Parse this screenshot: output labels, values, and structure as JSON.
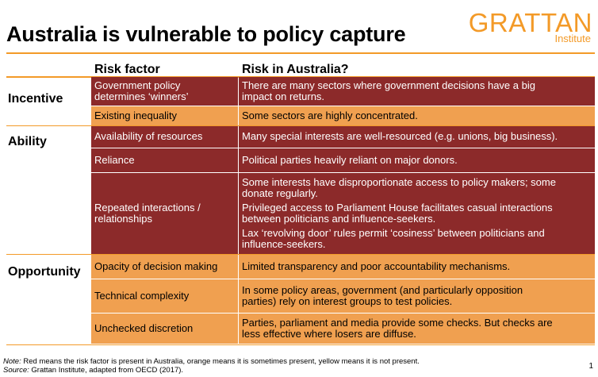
{
  "title": "Australia is vulnerable to policy capture",
  "logo": {
    "word": "GRATTAN",
    "sub": "Institute"
  },
  "headers": {
    "risk_factor": "Risk factor",
    "risk_in_australia": "Risk in Australia?"
  },
  "groups": {
    "incentive": "Incentive",
    "ability": "Ability",
    "opportunity": "Opportunity"
  },
  "rows": [
    {
      "factor": [
        "Government policy",
        "determines ‘winners’"
      ],
      "risk": [
        "There are many sectors where government decisions have a big",
        "impact on returns."
      ],
      "level": "red"
    },
    {
      "factor": [
        "Existing inequality"
      ],
      "risk": [
        "Some sectors are highly concentrated."
      ],
      "level": "orange"
    },
    {
      "factor": [
        "Availability of resources"
      ],
      "risk": [
        "Many special interests are well-resourced (e.g. unions, big business)."
      ],
      "level": "red"
    },
    {
      "factor": [
        "Reliance"
      ],
      "risk": [
        "Political parties heavily reliant on major donors."
      ],
      "level": "red"
    },
    {
      "factor": [
        "Repeated interactions /",
        "relationships"
      ],
      "risk": [
        "Some interests have disproportionate access to policy makers; some",
        "donate regularly.",
        "Privileged access to Parliament House facilitates casual interactions",
        "between politicians and influence-seekers.",
        "Lax ‘revolving door’ rules permit ‘cosiness’ between politicians and",
        "influence-seekers."
      ],
      "level": "red"
    },
    {
      "factor": [
        "Opacity of decision making"
      ],
      "risk": [
        "Limited transparency and poor accountability mechanisms."
      ],
      "level": "orange"
    },
    {
      "factor": [
        "Technical complexity"
      ],
      "risk": [
        "In some policy areas, government (and particularly opposition",
        "parties) rely on interest groups to test policies."
      ],
      "level": "orange"
    },
    {
      "factor": [
        "Unchecked discretion"
      ],
      "risk": [
        "Parties, parliament and media provide some checks. But checks are",
        "less effective where losers are diffuse."
      ],
      "level": "orange"
    }
  ],
  "colors": {
    "red": "#8c2a2a",
    "orange": "#f0a050",
    "accent": "#f39a28"
  },
  "note": {
    "label": "Note:",
    "text": " Red means the risk factor is present in Australia, orange means it is sometimes present, yellow means it is not present."
  },
  "source": {
    "label": "Source:",
    "text": " Grattan Institute, adapted from OECD (2017)."
  },
  "page_number": "1"
}
